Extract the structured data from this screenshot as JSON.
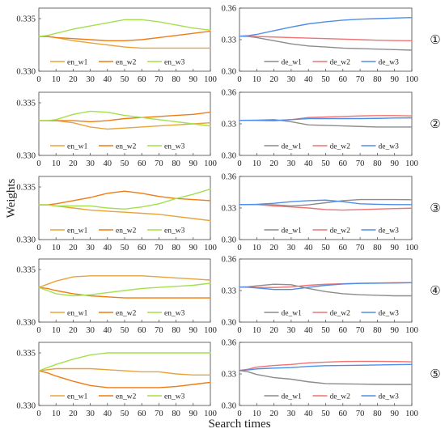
{
  "figure": {
    "ylabel": "Weights",
    "xlabel": "Search times",
    "colors": {
      "en_w1": "#e8a43a",
      "en_w2": "#f07c14",
      "en_w3": "#a4e04c",
      "de_w1": "#8c8c8c",
      "de_w2": "#f07272",
      "de_w3": "#4f8ee8"
    }
  },
  "chart_data": [
    {
      "type": "line",
      "panel": "en",
      "row": 1,
      "marker": "①",
      "x": [
        0,
        5,
        10,
        20,
        30,
        40,
        50,
        60,
        70,
        80,
        90,
        100
      ],
      "ylim": [
        0.33,
        0.336
      ],
      "yticks": [
        "0.335",
        "0.330"
      ],
      "xticks": [
        "0",
        "10",
        "20",
        "30",
        "40",
        "50",
        "60",
        "70",
        "80",
        "90",
        "100"
      ],
      "series": [
        {
          "name": "en_w1",
          "values": [
            0.3333,
            0.3333,
            0.3332,
            0.3329,
            0.3327,
            0.3325,
            0.3323,
            0.3322,
            0.3322,
            0.3322,
            0.3322,
            0.3322
          ]
        },
        {
          "name": "en_w2",
          "values": [
            0.3333,
            0.3333,
            0.3332,
            0.3331,
            0.333,
            0.3329,
            0.3329,
            0.333,
            0.3332,
            0.3334,
            0.3336,
            0.3338
          ]
        },
        {
          "name": "en_w3",
          "values": [
            0.3333,
            0.3334,
            0.3336,
            0.334,
            0.3343,
            0.3346,
            0.3349,
            0.3349,
            0.3347,
            0.3344,
            0.3341,
            0.3339
          ]
        }
      ]
    },
    {
      "type": "line",
      "panel": "de",
      "row": 1,
      "marker": "①",
      "x": [
        0,
        5,
        10,
        20,
        30,
        40,
        50,
        60,
        70,
        80,
        90,
        100
      ],
      "ylim": [
        0.3,
        0.36
      ],
      "yticks": [
        "0.36",
        "0.33",
        "0.30"
      ],
      "xticks": [
        "0",
        "10",
        "20",
        "30",
        "40",
        "50",
        "60",
        "70",
        "80",
        "90",
        "100"
      ],
      "series": [
        {
          "name": "de_w1",
          "values": [
            0.3333,
            0.333,
            0.332,
            0.329,
            0.326,
            0.324,
            0.323,
            0.322,
            0.3215,
            0.321,
            0.3205,
            0.32
          ]
        },
        {
          "name": "de_w2",
          "values": [
            0.3333,
            0.3332,
            0.333,
            0.3325,
            0.332,
            0.3315,
            0.331,
            0.3305,
            0.33,
            0.3295,
            0.3292,
            0.329
          ]
        },
        {
          "name": "de_w3",
          "values": [
            0.3333,
            0.3338,
            0.335,
            0.3385,
            0.342,
            0.345,
            0.347,
            0.3485,
            0.3495,
            0.35,
            0.3505,
            0.351
          ]
        }
      ]
    },
    {
      "type": "line",
      "panel": "en",
      "row": 2,
      "marker": "②",
      "x": [
        0,
        5,
        10,
        20,
        30,
        40,
        50,
        60,
        70,
        80,
        90,
        100
      ],
      "ylim": [
        0.33,
        0.336
      ],
      "yticks": [
        "0.335",
        "0.330"
      ],
      "xticks": [
        "0",
        "10",
        "20",
        "30",
        "40",
        "50",
        "60",
        "70",
        "80",
        "90",
        "100"
      ],
      "series": [
        {
          "name": "en_w1",
          "values": [
            0.3333,
            0.3333,
            0.3333,
            0.3331,
            0.3327,
            0.3325,
            0.3326,
            0.3327,
            0.3328,
            0.3329,
            0.333,
            0.3331
          ]
        },
        {
          "name": "en_w2",
          "values": [
            0.3333,
            0.3333,
            0.3333,
            0.3333,
            0.3332,
            0.3333,
            0.3335,
            0.3336,
            0.3337,
            0.3338,
            0.3339,
            0.3341
          ]
        },
        {
          "name": "en_w3",
          "values": [
            0.3333,
            0.3333,
            0.3334,
            0.3339,
            0.3342,
            0.3341,
            0.3338,
            0.3336,
            0.3334,
            0.3332,
            0.333,
            0.3328
          ]
        }
      ]
    },
    {
      "type": "line",
      "panel": "de",
      "row": 2,
      "marker": "②",
      "x": [
        0,
        5,
        10,
        20,
        30,
        40,
        50,
        60,
        70,
        80,
        90,
        100
      ],
      "ylim": [
        0.3,
        0.36
      ],
      "yticks": [
        "0.36",
        "0.33",
        "0.30"
      ],
      "xticks": [
        "0",
        "10",
        "20",
        "30",
        "40",
        "50",
        "60",
        "70",
        "80",
        "90",
        "100"
      ],
      "series": [
        {
          "name": "de_w1",
          "values": [
            0.3333,
            0.3334,
            0.3335,
            0.334,
            0.332,
            0.329,
            0.3285,
            0.328,
            0.3275,
            0.327,
            0.327,
            0.327
          ]
        },
        {
          "name": "de_w2",
          "values": [
            0.3333,
            0.3333,
            0.3332,
            0.3328,
            0.334,
            0.336,
            0.3365,
            0.337,
            0.3375,
            0.3378,
            0.3378,
            0.3375
          ]
        },
        {
          "name": "de_w3",
          "values": [
            0.3333,
            0.3333,
            0.3333,
            0.3332,
            0.334,
            0.335,
            0.335,
            0.335,
            0.335,
            0.3352,
            0.3355,
            0.3356
          ]
        }
      ]
    },
    {
      "type": "line",
      "panel": "en",
      "row": 3,
      "marker": "③",
      "x": [
        0,
        5,
        10,
        20,
        30,
        40,
        50,
        60,
        70,
        80,
        90,
        100
      ],
      "ylim": [
        0.33,
        0.336
      ],
      "yticks": [
        "0.335",
        "0.330"
      ],
      "xticks": [
        "0",
        "10",
        "20",
        "30",
        "40",
        "50",
        "60",
        "70",
        "80",
        "90",
        "100"
      ],
      "series": [
        {
          "name": "en_w1",
          "values": [
            0.3333,
            0.3333,
            0.3332,
            0.333,
            0.3328,
            0.3327,
            0.3326,
            0.3325,
            0.3324,
            0.3322,
            0.332,
            0.3318
          ]
        },
        {
          "name": "en_w2",
          "values": [
            0.3333,
            0.3333,
            0.3334,
            0.3337,
            0.334,
            0.3344,
            0.3346,
            0.3344,
            0.3341,
            0.3339,
            0.3338,
            0.3337
          ]
        },
        {
          "name": "en_w3",
          "values": [
            0.3333,
            0.3333,
            0.3332,
            0.3332,
            0.3332,
            0.333,
            0.3329,
            0.3331,
            0.3334,
            0.3339,
            0.3343,
            0.3348
          ]
        }
      ]
    },
    {
      "type": "line",
      "panel": "de",
      "row": 3,
      "marker": "③",
      "x": [
        0,
        5,
        10,
        20,
        30,
        40,
        50,
        60,
        70,
        80,
        90,
        100
      ],
      "ylim": [
        0.3,
        0.36
      ],
      "yticks": [
        "0.36",
        "0.33",
        "0.30"
      ],
      "xticks": [
        "0",
        "10",
        "20",
        "30",
        "40",
        "50",
        "60",
        "70",
        "80",
        "90",
        "100"
      ],
      "series": [
        {
          "name": "de_w1",
          "values": [
            0.3333,
            0.3333,
            0.3332,
            0.333,
            0.332,
            0.333,
            0.335,
            0.337,
            0.338,
            0.338,
            0.338,
            0.3378
          ]
        },
        {
          "name": "de_w2",
          "values": [
            0.3333,
            0.3333,
            0.3333,
            0.332,
            0.331,
            0.33,
            0.3285,
            0.328,
            0.3285,
            0.329,
            0.3295,
            0.3298
          ]
        },
        {
          "name": "de_w3",
          "values": [
            0.3333,
            0.3333,
            0.3335,
            0.3345,
            0.336,
            0.337,
            0.3375,
            0.336,
            0.334,
            0.3335,
            0.3332,
            0.3332
          ]
        }
      ]
    },
    {
      "type": "line",
      "panel": "en",
      "row": 4,
      "marker": "④",
      "x": [
        0,
        5,
        10,
        20,
        30,
        40,
        50,
        60,
        70,
        80,
        90,
        100
      ],
      "ylim": [
        0.33,
        0.336
      ],
      "yticks": [
        "0.335",
        "0.330"
      ],
      "xticks": [
        "0",
        "10",
        "20",
        "30",
        "40",
        "50",
        "60",
        "70",
        "80",
        "90",
        "100"
      ],
      "series": [
        {
          "name": "en_w1",
          "values": [
            0.3333,
            0.3336,
            0.3339,
            0.3343,
            0.3344,
            0.3344,
            0.3344,
            0.3344,
            0.3343,
            0.3342,
            0.3341,
            0.334
          ]
        },
        {
          "name": "en_w2",
          "values": [
            0.3333,
            0.3332,
            0.333,
            0.3327,
            0.3325,
            0.3324,
            0.3323,
            0.3323,
            0.3323,
            0.3323,
            0.3323,
            0.3323
          ]
        },
        {
          "name": "en_w3",
          "values": [
            0.3333,
            0.333,
            0.3327,
            0.3325,
            0.3326,
            0.3328,
            0.333,
            0.3332,
            0.3333,
            0.3334,
            0.3335,
            0.3337
          ]
        }
      ]
    },
    {
      "type": "line",
      "panel": "de",
      "row": 4,
      "marker": "④",
      "x": [
        0,
        5,
        10,
        20,
        30,
        40,
        50,
        60,
        70,
        80,
        90,
        100
      ],
      "ylim": [
        0.3,
        0.36
      ],
      "yticks": [
        "0.36",
        "0.33",
        "0.30"
      ],
      "xticks": [
        "0",
        "10",
        "20",
        "30",
        "40",
        "50",
        "60",
        "70",
        "80",
        "90",
        "100"
      ],
      "series": [
        {
          "name": "de_w1",
          "values": [
            0.3333,
            0.3336,
            0.3345,
            0.336,
            0.3355,
            0.332,
            0.329,
            0.327,
            0.326,
            0.3255,
            0.325,
            0.325
          ]
        },
        {
          "name": "de_w2",
          "values": [
            0.3333,
            0.3333,
            0.333,
            0.3328,
            0.3335,
            0.335,
            0.336,
            0.3365,
            0.337,
            0.3372,
            0.3374,
            0.3375
          ]
        },
        {
          "name": "de_w3",
          "values": [
            0.3333,
            0.3331,
            0.3325,
            0.331,
            0.331,
            0.333,
            0.335,
            0.3362,
            0.3368,
            0.337,
            0.3372,
            0.3375
          ]
        }
      ]
    },
    {
      "type": "line",
      "panel": "en",
      "row": 5,
      "marker": "⑤",
      "x": [
        0,
        5,
        10,
        20,
        30,
        40,
        50,
        60,
        70,
        80,
        90,
        100
      ],
      "ylim": [
        0.33,
        0.336
      ],
      "yticks": [
        "0.335",
        "0.330"
      ],
      "xticks": [
        "0",
        "10",
        "20",
        "30",
        "40",
        "50",
        "60",
        "70",
        "80",
        "90",
        "100"
      ],
      "series": [
        {
          "name": "en_w1",
          "values": [
            0.3333,
            0.3334,
            0.3335,
            0.3335,
            0.3335,
            0.3334,
            0.3333,
            0.3332,
            0.3332,
            0.333,
            0.3329,
            0.3329
          ]
        },
        {
          "name": "en_w2",
          "values": [
            0.3333,
            0.3331,
            0.3328,
            0.3323,
            0.3319,
            0.3317,
            0.3317,
            0.3317,
            0.3317,
            0.3318,
            0.332,
            0.3322
          ]
        },
        {
          "name": "en_w3",
          "values": [
            0.3333,
            0.3336,
            0.3339,
            0.3344,
            0.3348,
            0.335,
            0.335,
            0.335,
            0.335,
            0.335,
            0.335,
            0.335
          ]
        }
      ]
    },
    {
      "type": "line",
      "panel": "de",
      "row": 5,
      "marker": "⑤",
      "x": [
        0,
        5,
        10,
        20,
        30,
        40,
        50,
        60,
        70,
        80,
        90,
        100
      ],
      "ylim": [
        0.3,
        0.36
      ],
      "yticks": [
        "0.36",
        "0.33",
        "0.30"
      ],
      "xticks": [
        "0",
        "10",
        "20",
        "30",
        "40",
        "50",
        "60",
        "70",
        "80",
        "90",
        "100"
      ],
      "series": [
        {
          "name": "de_w1",
          "values": [
            0.3333,
            0.332,
            0.3295,
            0.3265,
            0.325,
            0.3225,
            0.3208,
            0.3205,
            0.3203,
            0.3201,
            0.32,
            0.32
          ]
        },
        {
          "name": "de_w2",
          "values": [
            0.3333,
            0.3345,
            0.3365,
            0.338,
            0.339,
            0.3405,
            0.3412,
            0.3418,
            0.342,
            0.342,
            0.3418,
            0.3415
          ]
        },
        {
          "name": "de_w3",
          "values": [
            0.3333,
            0.3338,
            0.3348,
            0.3355,
            0.336,
            0.3372,
            0.3378,
            0.338,
            0.3382,
            0.3385,
            0.3388,
            0.339
          ]
        }
      ]
    }
  ]
}
